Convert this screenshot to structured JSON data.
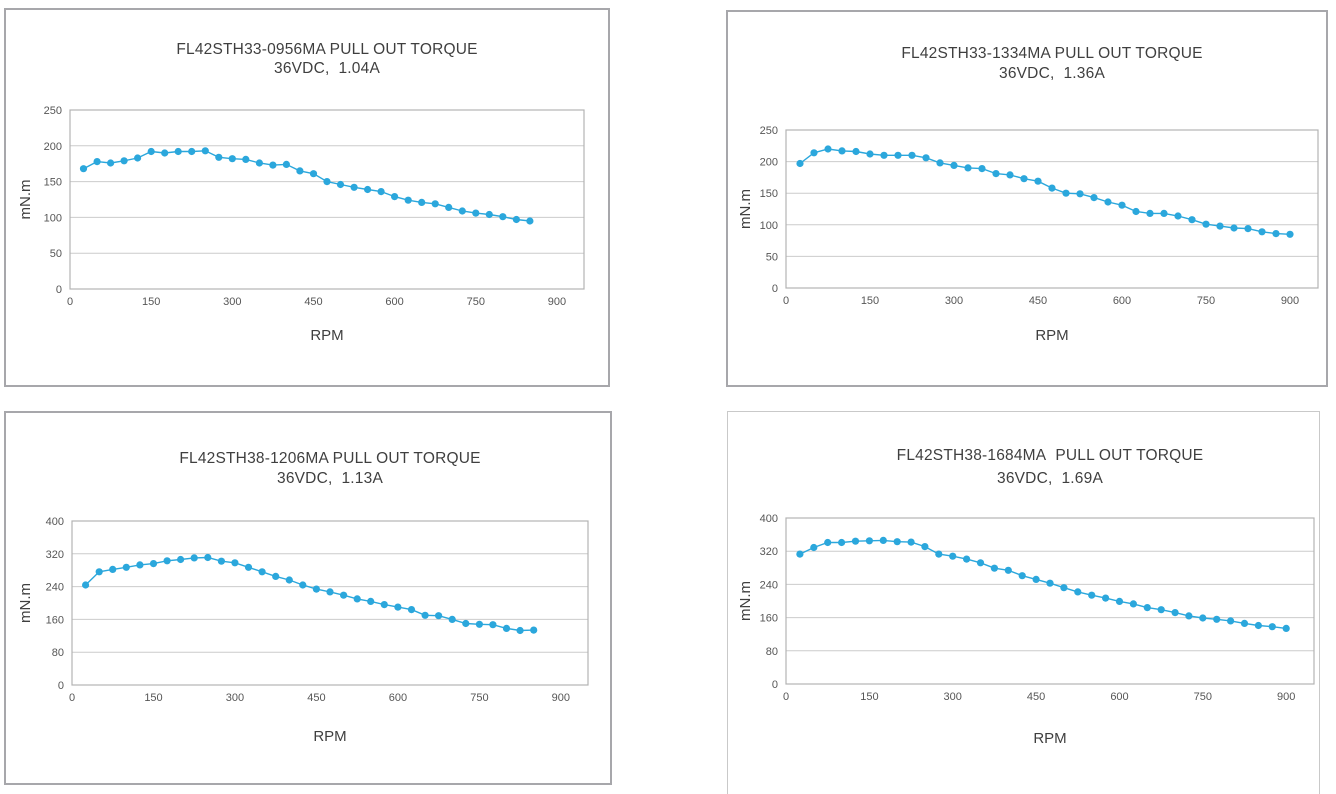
{
  "colors": {
    "series": "#2ba7dc",
    "grid": "#cbcbcb",
    "frame": "#b3b3b3",
    "title_text": "#3f3f3f",
    "tick_text": "#565656",
    "panel_border": "#a7a7ab",
    "panel4_border": "#c9c9c9",
    "background": "#ffffff"
  },
  "chart_data": [
    {
      "type": "line",
      "title": "FL42STH33-0956MA PULL OUT TORQUE",
      "subtitle": "36VDC,  1.04A",
      "xlabel": "RPM",
      "ylabel": "mN.m",
      "xlim": [
        0,
        950
      ],
      "ylim": [
        0,
        250
      ],
      "xticks": [
        0,
        150,
        300,
        450,
        600,
        750,
        900
      ],
      "yticks": [
        0,
        50,
        100,
        150,
        200,
        250
      ],
      "grid": "horizontal",
      "legend": "none",
      "marker": "circle",
      "x": [
        25,
        50,
        75,
        100,
        125,
        150,
        175,
        200,
        225,
        250,
        275,
        300,
        325,
        350,
        375,
        400,
        425,
        450,
        475,
        500,
        525,
        550,
        575,
        600,
        625,
        650,
        675,
        700,
        725,
        750,
        775,
        800,
        825,
        850
      ],
      "y": [
        168,
        178,
        176,
        179,
        183,
        192,
        190,
        192,
        192,
        193,
        184,
        182,
        181,
        176,
        173,
        174,
        165,
        161,
        150,
        146,
        142,
        139,
        136,
        129,
        124,
        121,
        119,
        114,
        109,
        106,
        104,
        101,
        97,
        95
      ]
    },
    {
      "type": "line",
      "title": "FL42STH33-1334MA PULL OUT TORQUE",
      "subtitle": "36VDC,  1.36A",
      "xlabel": "RPM",
      "ylabel": "mN.m",
      "xlim": [
        0,
        950
      ],
      "ylim": [
        0,
        250
      ],
      "xticks": [
        0,
        150,
        300,
        450,
        600,
        750,
        900
      ],
      "yticks": [
        0,
        50,
        100,
        150,
        200,
        250
      ],
      "grid": "horizontal",
      "legend": "none",
      "marker": "circle",
      "x": [
        25,
        50,
        75,
        100,
        125,
        150,
        175,
        200,
        225,
        250,
        275,
        300,
        325,
        350,
        375,
        400,
        425,
        450,
        475,
        500,
        525,
        550,
        575,
        600,
        625,
        650,
        675,
        700,
        725,
        750,
        775,
        800,
        825,
        850,
        875,
        900
      ],
      "y": [
        197,
        214,
        220,
        217,
        216,
        212,
        210,
        210,
        210,
        206,
        198,
        194,
        190,
        189,
        181,
        179,
        173,
        169,
        158,
        150,
        149,
        143,
        136,
        131,
        121,
        118,
        118,
        114,
        108,
        101,
        98,
        95,
        94,
        89,
        86,
        85
      ]
    },
    {
      "type": "line",
      "title": "FL42STH38-1206MA PULL OUT TORQUE",
      "subtitle": "36VDC,  1.13A",
      "xlabel": "RPM",
      "ylabel": "mN.m",
      "xlim": [
        0,
        950
      ],
      "ylim": [
        0,
        400
      ],
      "xticks": [
        0,
        150,
        300,
        450,
        600,
        750,
        900
      ],
      "yticks": [
        0,
        80,
        160,
        240,
        320,
        400
      ],
      "grid": "horizontal",
      "legend": "none",
      "marker": "circle",
      "x": [
        25,
        50,
        75,
        100,
        125,
        150,
        175,
        200,
        225,
        250,
        275,
        300,
        325,
        350,
        375,
        400,
        425,
        450,
        475,
        500,
        525,
        550,
        575,
        600,
        625,
        650,
        675,
        700,
        725,
        750,
        775,
        800,
        825,
        850
      ],
      "y": [
        244,
        276,
        282,
        287,
        293,
        296,
        303,
        306,
        310,
        311,
        302,
        298,
        287,
        276,
        265,
        256,
        244,
        234,
        227,
        219,
        210,
        204,
        196,
        190,
        184,
        170,
        169,
        160,
        150,
        148,
        147,
        138,
        133,
        134
      ]
    },
    {
      "type": "line",
      "title": "FL42STH38-1684MA  PULL OUT TORQUE",
      "subtitle": "36VDC,  1.69A",
      "xlabel": "RPM",
      "ylabel": "mN.m",
      "xlim": [
        0,
        950
      ],
      "ylim": [
        0,
        400
      ],
      "xticks": [
        0,
        150,
        300,
        450,
        600,
        750,
        900
      ],
      "yticks": [
        0,
        80,
        160,
        240,
        320,
        400
      ],
      "grid": "horizontal",
      "legend": "none",
      "marker": "circle",
      "x": [
        25,
        50,
        75,
        100,
        125,
        150,
        175,
        200,
        225,
        250,
        275,
        300,
        325,
        350,
        375,
        400,
        425,
        450,
        475,
        500,
        525,
        550,
        575,
        600,
        625,
        650,
        675,
        700,
        725,
        750,
        775,
        800,
        825,
        850,
        875,
        900
      ],
      "y": [
        313,
        329,
        341,
        341,
        344,
        345,
        346,
        343,
        342,
        331,
        313,
        308,
        301,
        292,
        279,
        274,
        261,
        252,
        243,
        232,
        222,
        214,
        207,
        199,
        193,
        184,
        179,
        172,
        164,
        159,
        156,
        152,
        146,
        141,
        138,
        134
      ]
    }
  ]
}
